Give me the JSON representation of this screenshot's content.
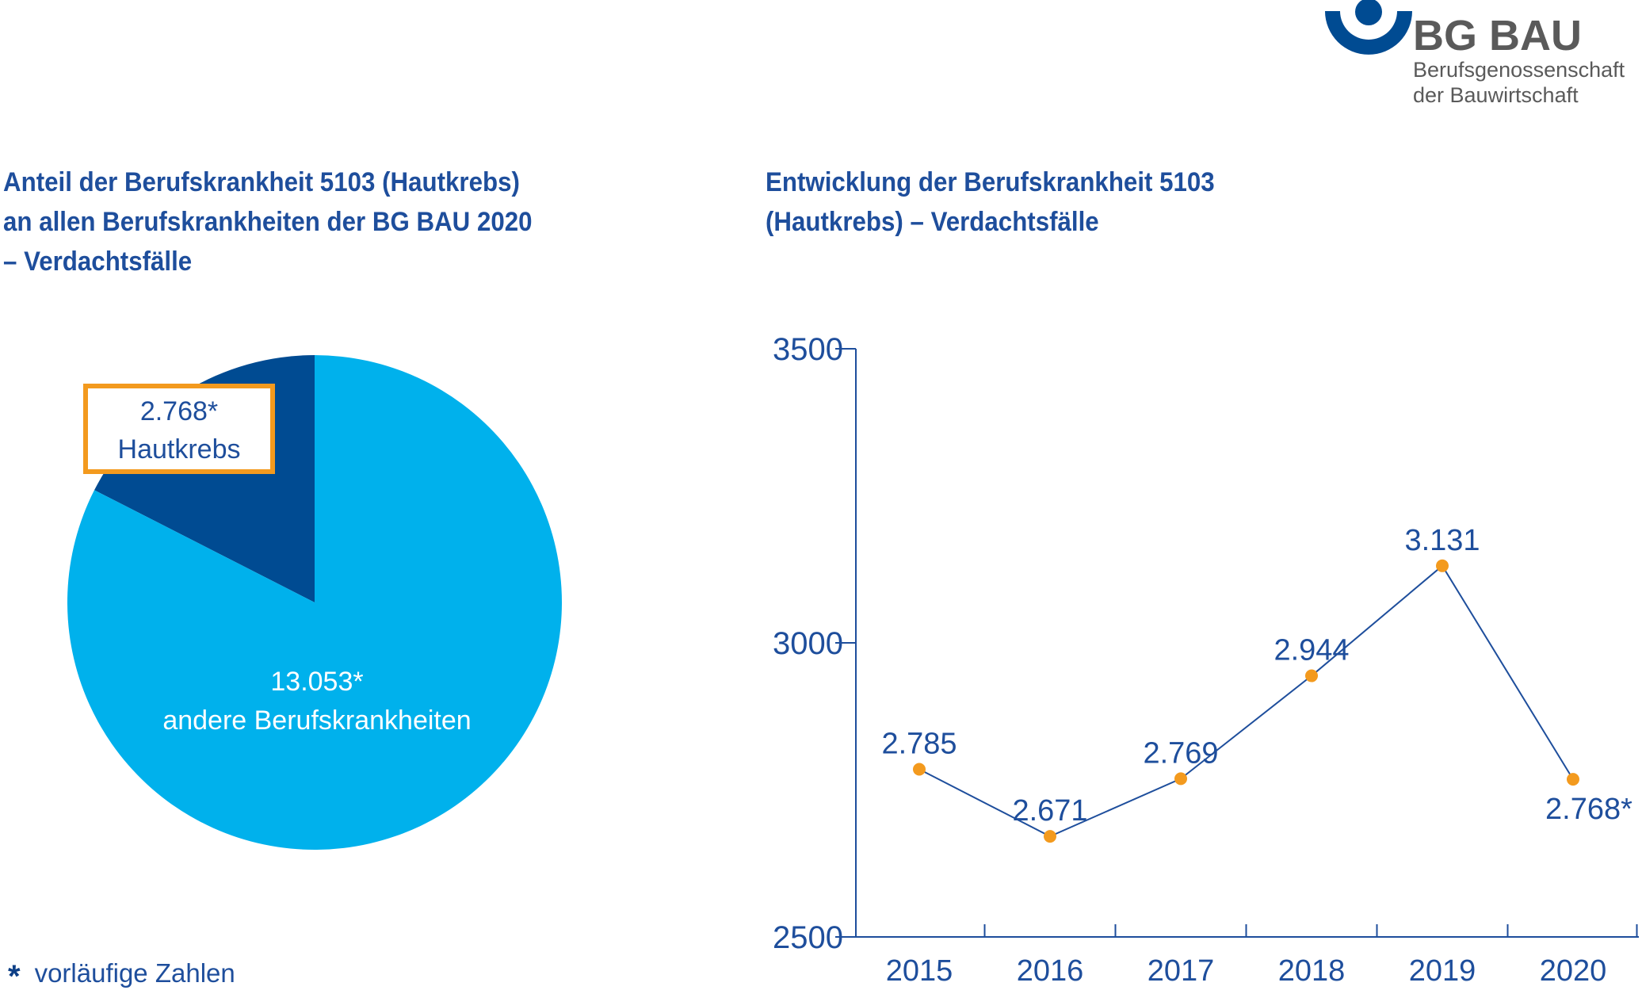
{
  "logo": {
    "name": "BG BAU",
    "subtitle_line1": "Berufsgenossenschaft",
    "subtitle_line2": "der Bauwirtschaft"
  },
  "footnote": {
    "symbol": "*",
    "text": "vorläufige Zahlen"
  },
  "colors": {
    "dark_blue": "#004b92",
    "light_blue": "#00b1ec",
    "orange": "#f39a1e",
    "text_blue": "#1e4e9c"
  },
  "chart_data": [
    {
      "type": "pie",
      "title_lines": [
        "Anteil der Berufskrankheit 5103 (Hautkrebs)",
        "an allen Berufskrankheiten der BG BAU 2020",
        "– Verdachtsfälle"
      ],
      "slices": [
        {
          "value": 2768,
          "label": "2.768*",
          "name": "Hautkrebs",
          "color": "#004b92"
        },
        {
          "value": 13053,
          "label": "13.053*",
          "name": "andere Berufskrankheiten",
          "color": "#00b1ec"
        }
      ]
    },
    {
      "type": "line",
      "title_lines": [
        "Entwicklung der Berufskrankheit 5103",
        "(Hautkrebs) – Verdachtsfälle"
      ],
      "x": [
        "2015",
        "2016",
        "2017",
        "2018",
        "2019",
        "2020"
      ],
      "y": [
        2785,
        2671,
        2769,
        2944,
        3131,
        2768
      ],
      "point_labels": [
        "2.785",
        "2.671",
        "2.769",
        "2.944",
        "3.131",
        "2.768*"
      ],
      "ylim": [
        2500,
        3500
      ],
      "yticks": [
        "2500",
        "3000",
        "3500"
      ],
      "line_color": "#1e4e9c",
      "marker_color": "#f39a1e"
    }
  ]
}
